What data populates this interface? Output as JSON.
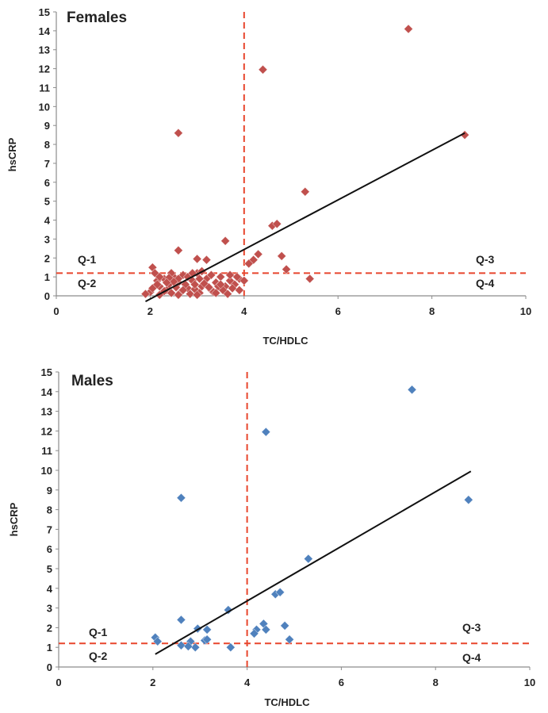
{
  "chart_data": [
    {
      "type": "scatter",
      "title": "Females",
      "xlabel": "TC/HDLC",
      "ylabel": "hsCRP",
      "xlim": [
        0,
        10
      ],
      "ylim": [
        0,
        15
      ],
      "x_ticks": [
        "0",
        "2",
        "4",
        "6",
        "8",
        "10"
      ],
      "y_ticks": [
        "0",
        "1",
        "2",
        "3",
        "4",
        "5",
        "6",
        "7",
        "8",
        "9",
        "10",
        "11",
        "12",
        "13",
        "14",
        "15"
      ],
      "grid": false,
      "marker_color": "#C0504D",
      "trendline": {
        "x": [
          1.9,
          8.7
        ],
        "y": [
          -0.3,
          8.6
        ],
        "color": "#111111"
      },
      "threshold_x": 4,
      "threshold_y": 1.2,
      "threshold_color": "#E8452C",
      "quadrants": [
        "Q-1",
        "Q-2",
        "Q-3",
        "Q-4"
      ],
      "points": [
        [
          7.5,
          14.1
        ],
        [
          4.4,
          11.95
        ],
        [
          2.6,
          8.6
        ],
        [
          8.7,
          8.5
        ],
        [
          5.3,
          5.5
        ],
        [
          4.6,
          3.7
        ],
        [
          4.7,
          3.8
        ],
        [
          3.6,
          2.9
        ],
        [
          2.6,
          2.4
        ],
        [
          4.3,
          2.2
        ],
        [
          4.8,
          2.1
        ],
        [
          4.2,
          1.9
        ],
        [
          4.1,
          1.7
        ],
        [
          3.0,
          1.95
        ],
        [
          3.2,
          1.9
        ],
        [
          4.9,
          1.4
        ],
        [
          5.4,
          0.9
        ],
        [
          2.05,
          1.5
        ],
        [
          2.1,
          1.2
        ],
        [
          2.15,
          0.8
        ],
        [
          2.2,
          0.5
        ],
        [
          2.3,
          0.9
        ],
        [
          2.4,
          0.6
        ],
        [
          2.5,
          1.0
        ],
        [
          2.6,
          0.7
        ],
        [
          2.7,
          1.1
        ],
        [
          2.8,
          0.4
        ],
        [
          2.9,
          0.8
        ],
        [
          3.0,
          1.2
        ],
        [
          3.1,
          0.5
        ],
        [
          3.2,
          0.9
        ],
        [
          3.3,
          0.3
        ],
        [
          3.4,
          0.7
        ],
        [
          3.5,
          1.0
        ],
        [
          3.6,
          0.5
        ],
        [
          3.7,
          0.8
        ],
        [
          3.8,
          0.6
        ],
        [
          3.9,
          0.9
        ],
        [
          4.0,
          0.8
        ],
        [
          2.0,
          0.2
        ],
        [
          1.9,
          0.1
        ],
        [
          2.05,
          0.4
        ],
        [
          2.2,
          0.05
        ],
        [
          2.35,
          0.3
        ],
        [
          2.45,
          0.15
        ],
        [
          2.55,
          0.45
        ],
        [
          2.65,
          0.2
        ],
        [
          2.75,
          0.6
        ],
        [
          2.85,
          0.1
        ],
        [
          2.95,
          0.35
        ],
        [
          3.05,
          0.15
        ],
        [
          3.15,
          0.65
        ],
        [
          3.25,
          0.45
        ],
        [
          3.35,
          0.2
        ],
        [
          3.45,
          0.5
        ],
        [
          3.55,
          0.3
        ],
        [
          3.65,
          0.1
        ],
        [
          3.75,
          0.4
        ],
        [
          2.2,
          1.0
        ],
        [
          2.45,
          1.2
        ],
        [
          2.6,
          0.9
        ],
        [
          2.8,
          1.0
        ],
        [
          3.05,
          0.9
        ],
        [
          3.1,
          1.3
        ],
        [
          2.95,
          0.6
        ],
        [
          2.7,
          0.3
        ],
        [
          2.5,
          0.75
        ],
        [
          2.3,
          0.25
        ],
        [
          2.4,
          0.95
        ],
        [
          3.3,
          1.1
        ],
        [
          3.5,
          0.6
        ],
        [
          3.85,
          1.0
        ],
        [
          3.9,
          0.3
        ],
        [
          2.15,
          0.6
        ],
        [
          2.6,
          0.05
        ],
        [
          3.0,
          0.05
        ],
        [
          3.4,
          0.15
        ],
        [
          3.7,
          1.1
        ],
        [
          2.35,
          0.7
        ],
        [
          2.9,
          1.2
        ]
      ]
    },
    {
      "type": "scatter",
      "title": "Males",
      "xlabel": "TC/HDLC",
      "ylabel": "hsCRP",
      "xlim": [
        0,
        10
      ],
      "ylim": [
        0,
        15
      ],
      "x_ticks": [
        "0",
        "2",
        "4",
        "6",
        "8",
        "10"
      ],
      "y_ticks": [
        "0",
        "1",
        "2",
        "3",
        "4",
        "5",
        "6",
        "7",
        "8",
        "9",
        "10",
        "11",
        "12",
        "13",
        "14",
        "15"
      ],
      "grid": false,
      "marker_color": "#4F81BD",
      "trendline": {
        "x": [
          2.05,
          8.75
        ],
        "y": [
          0.65,
          9.95
        ],
        "color": "#111111"
      },
      "threshold_x": 4,
      "threshold_y": 1.2,
      "threshold_color": "#E8452C",
      "quadrants": [
        "Q-1",
        "Q-2",
        "Q-3",
        "Q-4"
      ],
      "points": [
        [
          7.5,
          14.1
        ],
        [
          4.4,
          11.95
        ],
        [
          2.6,
          8.6
        ],
        [
          8.7,
          8.5
        ],
        [
          5.3,
          5.5
        ],
        [
          4.6,
          3.7
        ],
        [
          4.7,
          3.8
        ],
        [
          3.6,
          2.9
        ],
        [
          2.6,
          2.4
        ],
        [
          4.35,
          2.2
        ],
        [
          4.8,
          2.1
        ],
        [
          4.2,
          1.9
        ],
        [
          4.15,
          1.7
        ],
        [
          4.4,
          1.9
        ],
        [
          2.95,
          1.95
        ],
        [
          3.15,
          1.9
        ],
        [
          4.9,
          1.4
        ],
        [
          2.05,
          1.5
        ],
        [
          2.1,
          1.3
        ],
        [
          2.6,
          1.1
        ],
        [
          2.8,
          1.3
        ],
        [
          2.9,
          1.0
        ],
        [
          3.1,
          1.35
        ],
        [
          3.15,
          1.4
        ],
        [
          3.65,
          1.0
        ],
        [
          2.75,
          1.05
        ]
      ]
    }
  ]
}
